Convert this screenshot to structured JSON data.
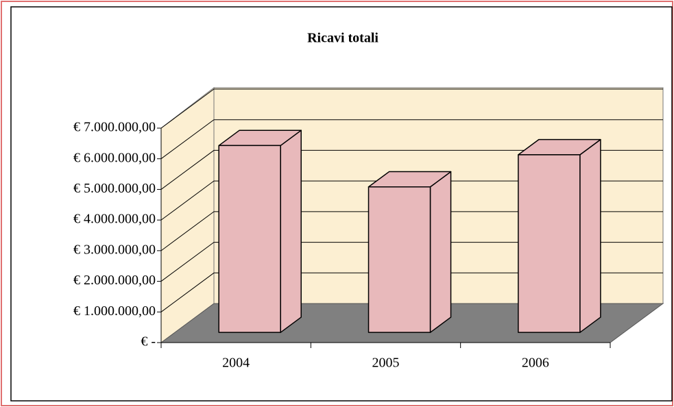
{
  "chart_data": {
    "type": "bar3d",
    "title": "Ricavi totali",
    "categories": [
      "2004",
      "2005",
      "2006"
    ],
    "values": [
      6100000,
      4750000,
      5800000
    ],
    "color": "#e8b9bb",
    "ylim": [
      0,
      7000000
    ],
    "yticks": [
      {
        "value": 0,
        "label": "€ -"
      },
      {
        "value": 1000000,
        "label": "€ 1.000.000,00"
      },
      {
        "value": 2000000,
        "label": "€ 2.000.000,00"
      },
      {
        "value": 3000000,
        "label": "€ 3.000.000,00"
      },
      {
        "value": 4000000,
        "label": "€ 4.000.000,00"
      },
      {
        "value": 5000000,
        "label": "€ 5.000.000,00"
      },
      {
        "value": 6000000,
        "label": "€ 6.000.000,00"
      },
      {
        "value": 7000000,
        "label": "€ 7.000.000,00"
      }
    ],
    "grid": true
  }
}
